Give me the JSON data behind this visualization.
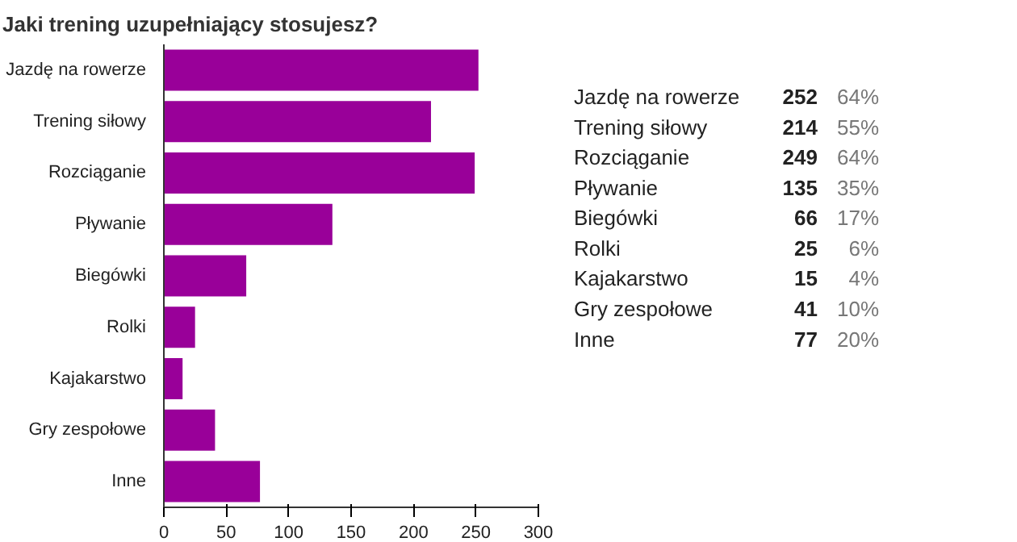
{
  "chart_data": [
    {
      "type": "bar",
      "orientation": "horizontal",
      "title": "Jaki trening uzupełniający stosujesz?",
      "categories": [
        "Jazdę na rowerze",
        "Trening siłowy",
        "Rozciąganie",
        "Pływanie",
        "Biegówki",
        "Rolki",
        "Kajakarstwo",
        "Gry zespołowe",
        "Inne"
      ],
      "values": [
        252,
        214,
        249,
        135,
        66,
        25,
        15,
        41,
        77
      ],
      "color": "#990099",
      "xlim": [
        0,
        300
      ],
      "xticks": [
        0,
        50,
        100,
        150,
        200,
        250,
        300
      ],
      "grid": false
    },
    {
      "type": "other",
      "categories": [
        "Jazdę na rowerze",
        "Trening siłowy",
        "Rozciąganie",
        "Pływanie",
        "Biegówki",
        "Rolki",
        "Kajakarstwo",
        "Gry zespołowe",
        "Inne"
      ],
      "values": [
        252,
        214,
        249,
        135,
        66,
        25,
        15,
        41,
        77
      ],
      "data_labels": true,
      "annotations": [
        "64%",
        "55%",
        "64%",
        "35%",
        "17%",
        "6%",
        "4%",
        "10%",
        "20%"
      ]
    }
  ]
}
